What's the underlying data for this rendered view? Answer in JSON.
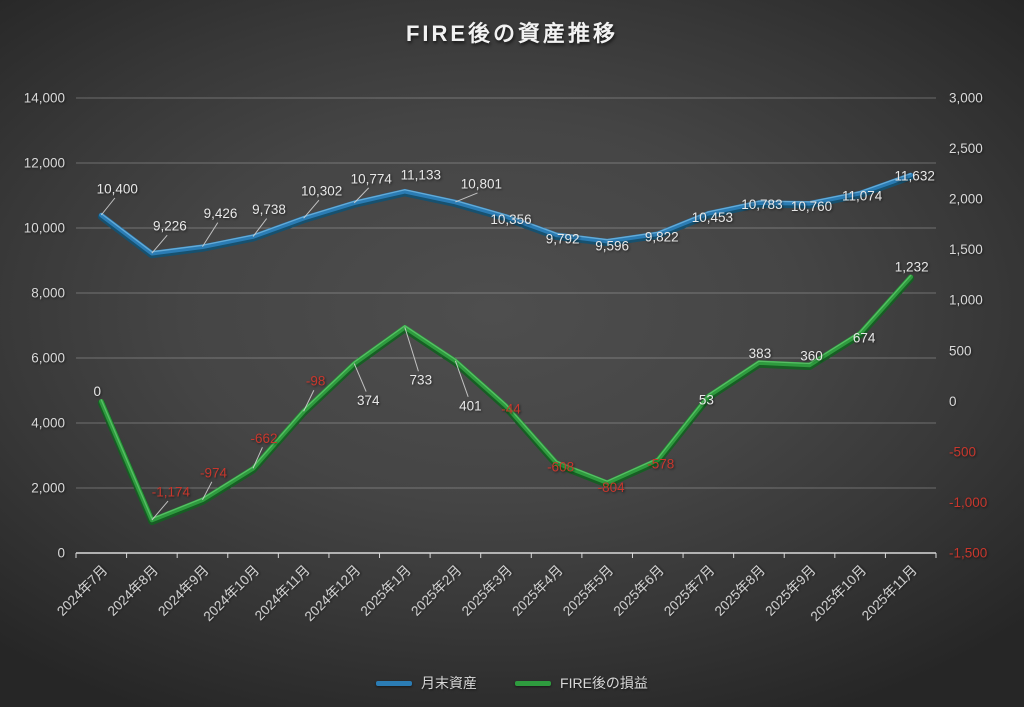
{
  "title": "FIRE後の資産推移",
  "legend": [
    {
      "label": "月末資産",
      "color": "#2b7cb4"
    },
    {
      "label": "FIRE後の損益",
      "color": "#2e9b3e"
    }
  ],
  "chart_data": {
    "type": "line",
    "title": "FIRE後の資産推移",
    "categories": [
      "2024年7月",
      "2024年8月",
      "2024年9月",
      "2024年10月",
      "2024年11月",
      "2024年12月",
      "2025年1月",
      "2025年2月",
      "2025年3月",
      "2025年4月",
      "2025年5月",
      "2025年6月",
      "2025年7月",
      "2025年8月",
      "2025年9月",
      "2025年10月",
      "2025年11月"
    ],
    "series": [
      {
        "name": "月末資産",
        "axis": "left",
        "color": "#2b7cb4",
        "values": [
          10400,
          9226,
          9426,
          9738,
          10302,
          10774,
          11133,
          10801,
          10356,
          9792,
          9596,
          9822,
          10453,
          10783,
          10760,
          11074,
          11632
        ]
      },
      {
        "name": "FIRE後の損益",
        "axis": "right",
        "color": "#2e9b3e",
        "values": [
          0,
          -1174,
          -974,
          -662,
          -98,
          374,
          733,
          401,
          -44,
          -608,
          -804,
          -578,
          53,
          383,
          360,
          674,
          1232
        ]
      }
    ],
    "left_axis": {
      "min": 0,
      "max": 14000,
      "step": 2000,
      "tick_labels": [
        "0",
        "2,000",
        "4,000",
        "6,000",
        "8,000",
        "10,000",
        "12,000",
        "14,000"
      ]
    },
    "right_axis": {
      "min": -1500,
      "max": 3000,
      "step": 500,
      "tick_labels": [
        "-1,500",
        "-1,000",
        "-500",
        "0",
        "500",
        "1,000",
        "1,500",
        "2,000",
        "2,500",
        "3,000"
      ]
    },
    "grid": true,
    "data_labels": true,
    "legend_position": "bottom",
    "colors": {
      "label": "#e8e8e8",
      "negative_label": "#c8372d",
      "axis_text": "#d9d9d9",
      "gridline": "rgba(255,255,255,0.27)",
      "axis_line": "#d9d9d9",
      "leader_line": "#d0d0d0"
    }
  }
}
